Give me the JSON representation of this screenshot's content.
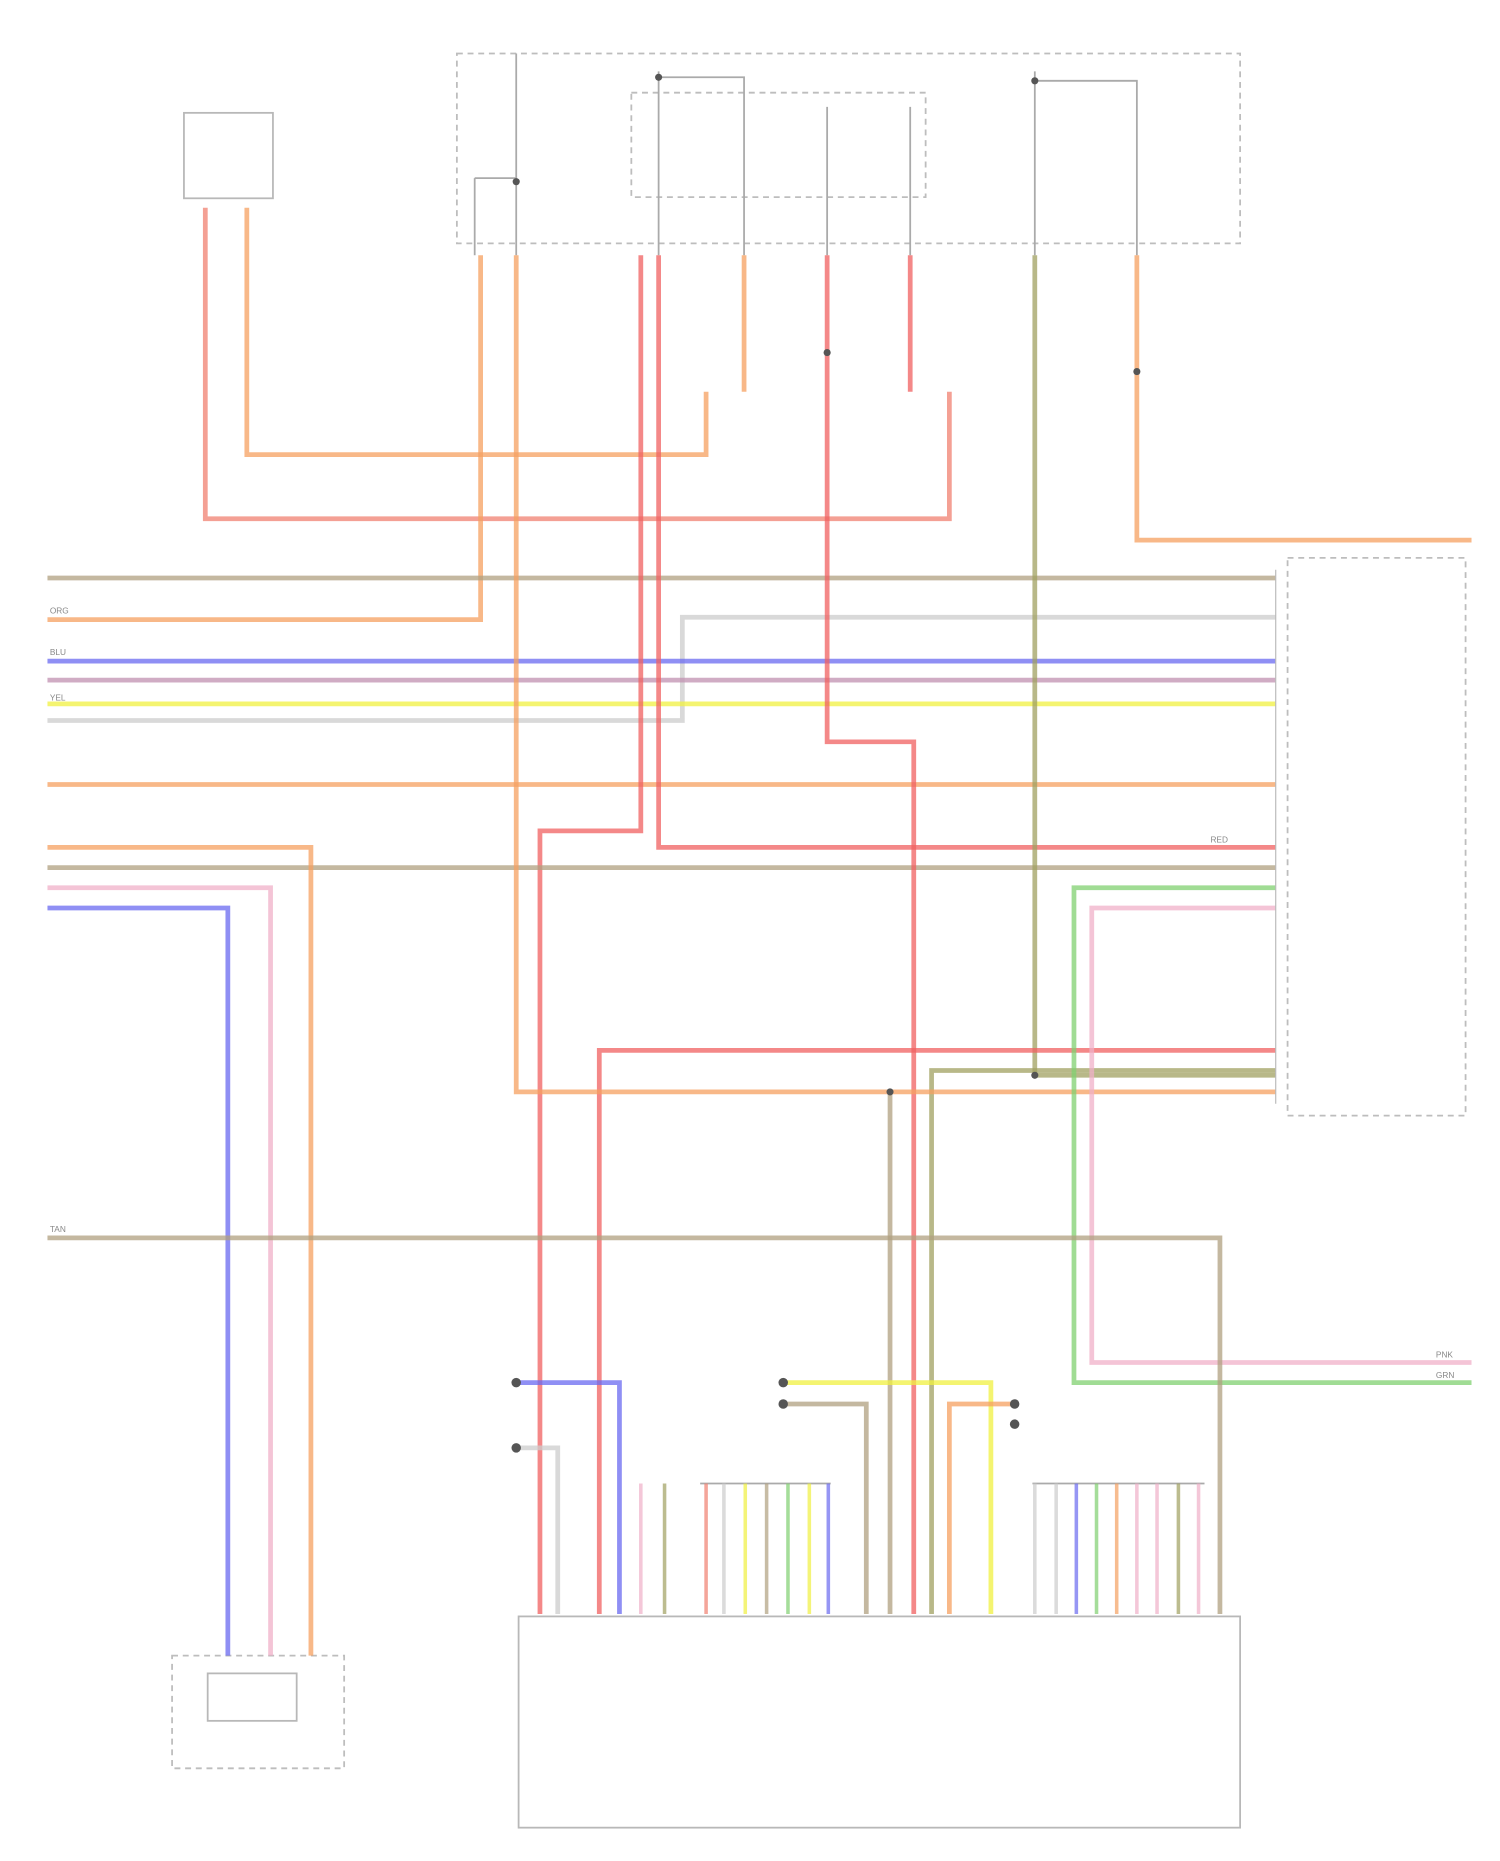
{
  "diagram": {
    "type": "wiring-diagram",
    "wire_colors": {
      "orange": "#f5a060",
      "red": "#f06060",
      "salmon": "#f08070",
      "tan": "#b0a080",
      "gray": "#cccccc",
      "blue": "#6a6af0",
      "pink": "#f0b0c8",
      "mauve": "#c090b0",
      "yellow": "#f0f040",
      "olive": "#a0a060",
      "green": "#80d070"
    },
    "wire_labels": {
      "orange": "ORG",
      "red": "RED",
      "blue": "BLU",
      "pink": "PNK",
      "yellow": "YEL",
      "green": "GRN",
      "tan": "TAN"
    }
  }
}
